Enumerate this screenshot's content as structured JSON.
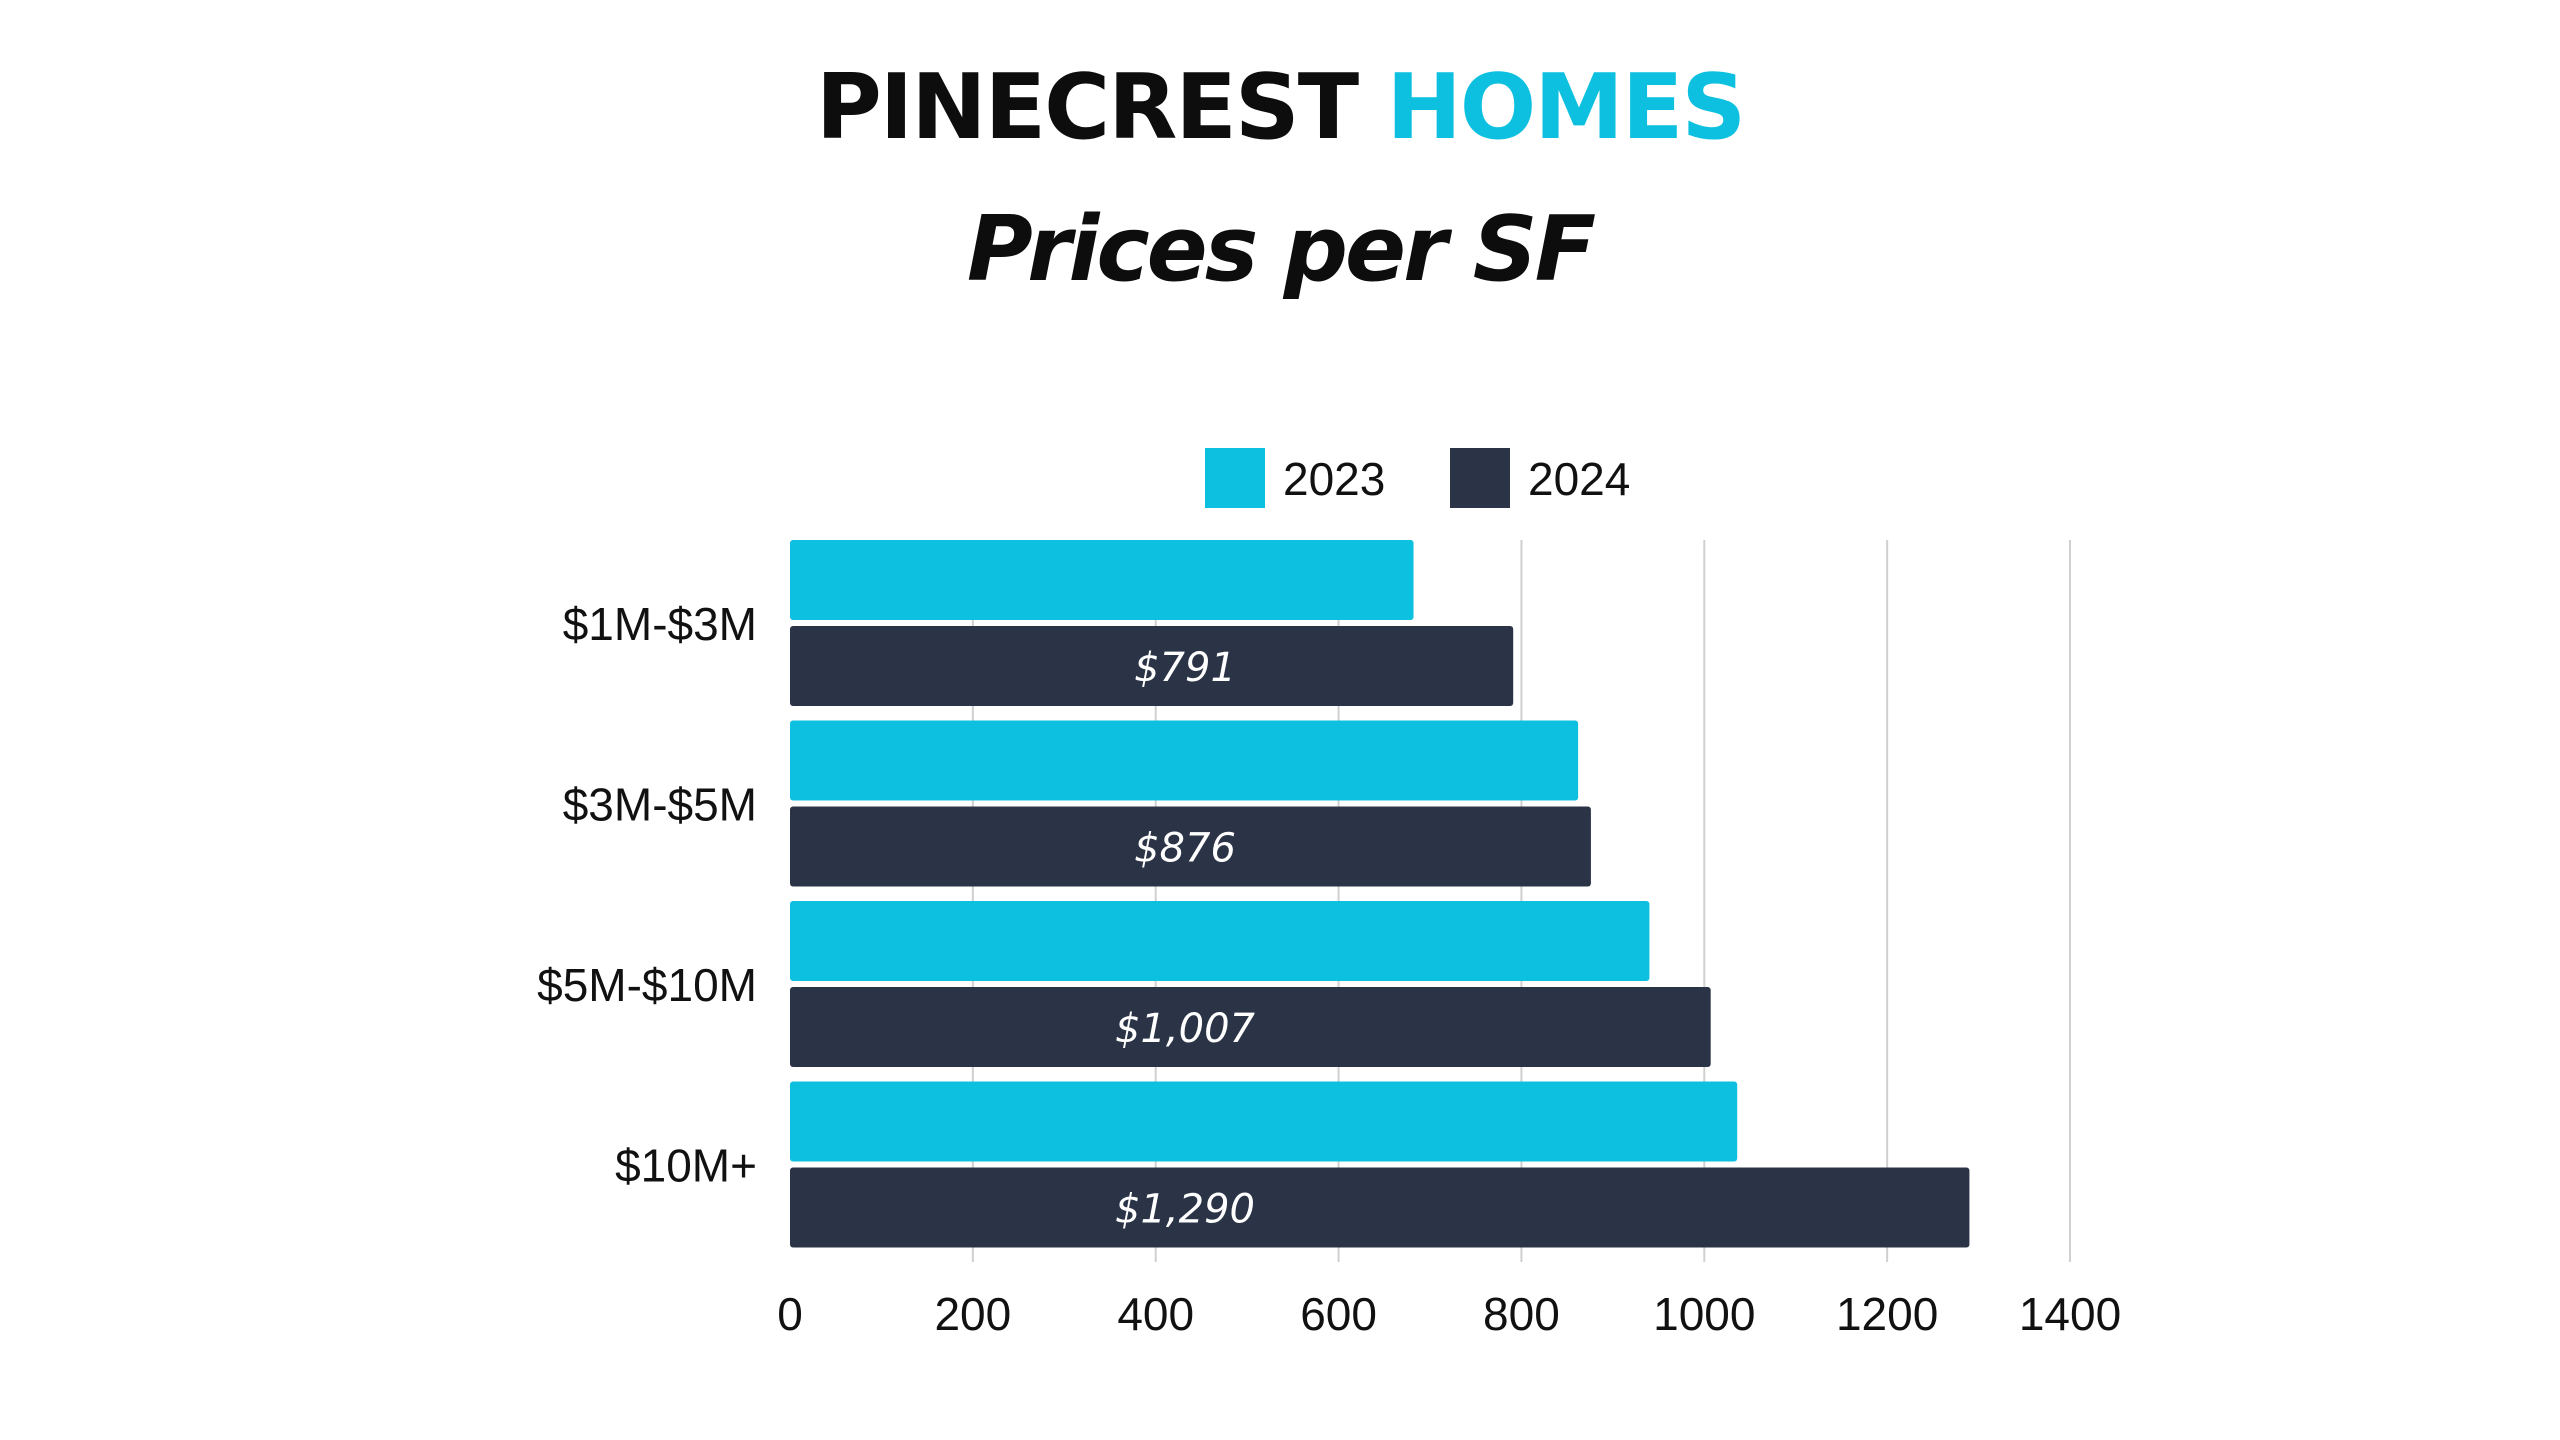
{
  "header": {
    "title_main": "PINECREST",
    "title_accent": "HOMES",
    "subtitle": "Prices per SF"
  },
  "colors": {
    "accent": "#0dc0e0",
    "dark": "#2b3447",
    "grid": "#d0d0d0",
    "text": "#111111"
  },
  "chart_data": {
    "type": "bar",
    "orientation": "horizontal",
    "title": "Prices per SF",
    "categories": [
      "$1M-$3M",
      "$3M-$5M",
      "$5M-$10M",
      "$10M+"
    ],
    "series": [
      {
        "name": "2023",
        "color": "#0dc0e0",
        "values": [
          682,
          862,
          940,
          1036
        ],
        "labels": [
          "",
          "",
          "",
          ""
        ]
      },
      {
        "name": "2024",
        "color": "#2b3447",
        "values": [
          791,
          876,
          1007,
          1290
        ],
        "labels": [
          "$791",
          "$876",
          "$1,007",
          "$1,290"
        ]
      }
    ],
    "xlim": [
      0,
      1400
    ],
    "xticks": [
      "0",
      "200",
      "400",
      "600",
      "800",
      "1000",
      "1200",
      "1400"
    ],
    "xlabel": "",
    "ylabel": "",
    "grid": "vertical",
    "legend": "top-center"
  }
}
